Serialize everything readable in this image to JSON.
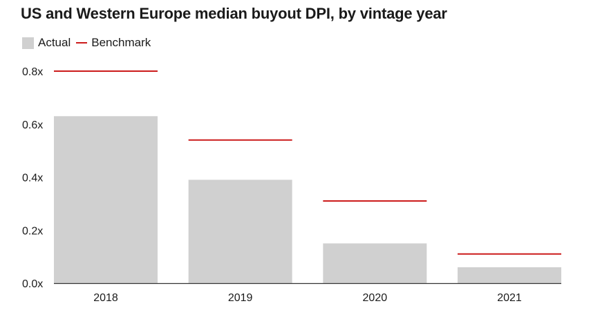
{
  "title": "US and Western Europe median buyout DPI, by vintage year",
  "legend": {
    "actual_label": "Actual",
    "benchmark_label": "Benchmark"
  },
  "colors": {
    "actual": "#d0d0d0",
    "benchmark": "#cc1a1a",
    "axis": "#333333",
    "text": "#1a1a1a"
  },
  "chart_data": {
    "type": "bar",
    "title": "US and Western Europe median buyout DPI, by vintage year",
    "categories": [
      "2018",
      "2019",
      "2020",
      "2021"
    ],
    "series": [
      {
        "name": "Actual",
        "type": "bar",
        "values": [
          0.63,
          0.39,
          0.15,
          0.06
        ]
      },
      {
        "name": "Benchmark",
        "type": "marker-line",
        "values": [
          0.8,
          0.54,
          0.31,
          0.11
        ]
      }
    ],
    "y_ticks": [
      0.0,
      0.2,
      0.4,
      0.6,
      0.8
    ],
    "y_tick_labels": [
      "0.0x",
      "0.2x",
      "0.4x",
      "0.6x",
      "0.8x"
    ],
    "ylim": [
      0,
      0.8
    ],
    "xlabel": "",
    "ylabel": "",
    "grid": false,
    "legend_position": "top-left"
  }
}
